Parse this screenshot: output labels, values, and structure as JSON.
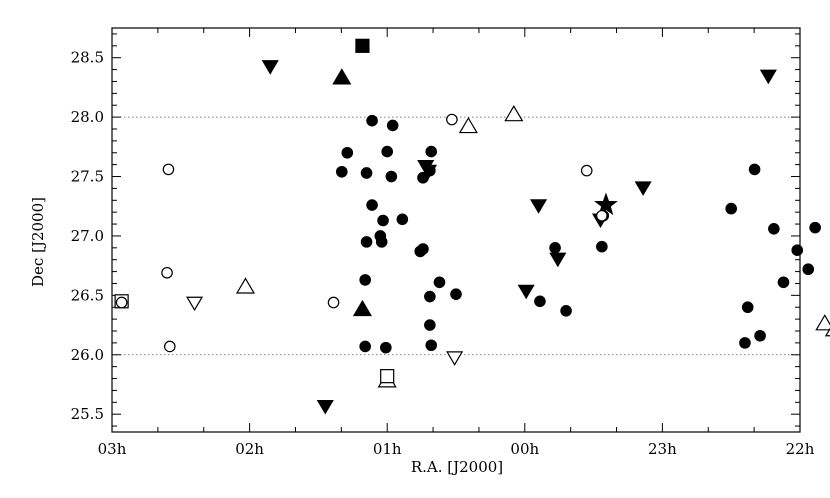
{
  "chart_data": {
    "type": "scatter",
    "xlabel": "R.A. [J2000]",
    "ylabel": "Dec [J2000]",
    "x_unit": "hours",
    "x_reversed": true,
    "xlim": [
      3.0,
      22.0
    ],
    "ylim": [
      25.35,
      28.75
    ],
    "xticks": [
      {
        "value": 3.0,
        "label": "03h"
      },
      {
        "value": 2.0,
        "label": "02h"
      },
      {
        "value": 1.0,
        "label": "01h"
      },
      {
        "value": 0.0,
        "label": "00h"
      },
      {
        "value": 23.0,
        "label": "23h"
      },
      {
        "value": 22.0,
        "label": "22h"
      }
    ],
    "yticks": [
      {
        "value": 25.5,
        "label": "25.5"
      },
      {
        "value": 26.0,
        "label": "26.0"
      },
      {
        "value": 26.5,
        "label": "26.5"
      },
      {
        "value": 27.0,
        "label": "27.0"
      },
      {
        "value": 27.5,
        "label": "27.5"
      },
      {
        "value": 28.0,
        "label": "28.0"
      },
      {
        "value": 28.5,
        "label": "28.5"
      }
    ],
    "grid_lines_y": [
      26.0,
      28.0
    ],
    "series": [
      {
        "marker": "filled-circle",
        "points": [
          [
            1.11,
            27.97
          ],
          [
            0.96,
            27.93
          ],
          [
            1.29,
            27.7
          ],
          [
            1.0,
            27.71
          ],
          [
            0.68,
            27.71
          ],
          [
            1.33,
            27.54
          ],
          [
            1.15,
            27.53
          ],
          [
            0.97,
            27.5
          ],
          [
            0.74,
            27.49
          ],
          [
            0.69,
            27.55
          ],
          [
            1.11,
            27.26
          ],
          [
            1.03,
            27.13
          ],
          [
            0.89,
            27.14
          ],
          [
            1.05,
            27.0
          ],
          [
            1.15,
            26.95
          ],
          [
            1.04,
            26.95
          ],
          [
            0.76,
            26.87
          ],
          [
            0.74,
            26.89
          ],
          [
            1.16,
            26.63
          ],
          [
            0.62,
            26.61
          ],
          [
            0.5,
            26.51
          ],
          [
            0.69,
            26.49
          ],
          [
            0.69,
            26.25
          ],
          [
            0.68,
            26.08
          ],
          [
            1.16,
            26.07
          ],
          [
            1.01,
            26.06
          ],
          [
            -0.11,
            26.45
          ],
          [
            -0.22,
            26.9
          ],
          [
            -0.3,
            26.37
          ],
          [
            -0.57,
            27.17
          ],
          [
            -0.56,
            26.91
          ],
          [
            -1.5,
            27.23
          ],
          [
            -1.67,
            27.56
          ],
          [
            -1.62,
            26.4
          ],
          [
            -1.6,
            26.1
          ],
          [
            -1.71,
            26.16
          ],
          [
            -1.81,
            27.06
          ],
          [
            -1.98,
            26.88
          ],
          [
            -1.88,
            26.61
          ],
          [
            -2.06,
            26.72
          ],
          [
            -2.11,
            27.07
          ]
        ]
      },
      {
        "marker": "open-circle",
        "points": [
          [
            2.93,
            26.44
          ],
          [
            2.59,
            27.56
          ],
          [
            2.6,
            26.69
          ],
          [
            2.58,
            26.07
          ],
          [
            1.39,
            26.44
          ],
          [
            0.53,
            27.98
          ],
          [
            -0.45,
            27.55
          ],
          [
            -0.56,
            27.17
          ]
        ]
      },
      {
        "marker": "filled-triangle-up",
        "points": [
          [
            1.33,
            28.33
          ],
          [
            1.18,
            26.38
          ]
        ]
      },
      {
        "marker": "open-triangle-up",
        "points": [
          [
            2.03,
            26.57
          ],
          [
            0.41,
            27.92
          ],
          [
            0.08,
            28.02
          ],
          [
            1.0,
            25.78
          ],
          [
            -2.18,
            26.26
          ],
          [
            -2.25,
            26.21
          ]
        ]
      },
      {
        "marker": "filled-triangle-down",
        "points": [
          [
            1.85,
            28.43
          ],
          [
            1.45,
            25.57
          ],
          [
            0.72,
            27.59
          ],
          [
            0.7,
            27.55
          ],
          [
            -0.01,
            26.54
          ],
          [
            -0.1,
            27.26
          ],
          [
            -0.24,
            26.81
          ],
          [
            -0.55,
            27.14
          ],
          [
            -0.86,
            27.41
          ],
          [
            -1.77,
            28.35
          ]
        ]
      },
      {
        "marker": "open-triangle-down",
        "points": [
          [
            2.4,
            26.44
          ],
          [
            0.51,
            25.98
          ]
        ]
      },
      {
        "marker": "filled-square",
        "points": [
          [
            1.18,
            28.6
          ]
        ]
      },
      {
        "marker": "open-square",
        "points": [
          [
            2.93,
            26.45
          ],
          [
            1.0,
            25.82
          ]
        ]
      },
      {
        "marker": "filled-star",
        "points": [
          [
            -0.59,
            27.26
          ]
        ]
      }
    ]
  }
}
